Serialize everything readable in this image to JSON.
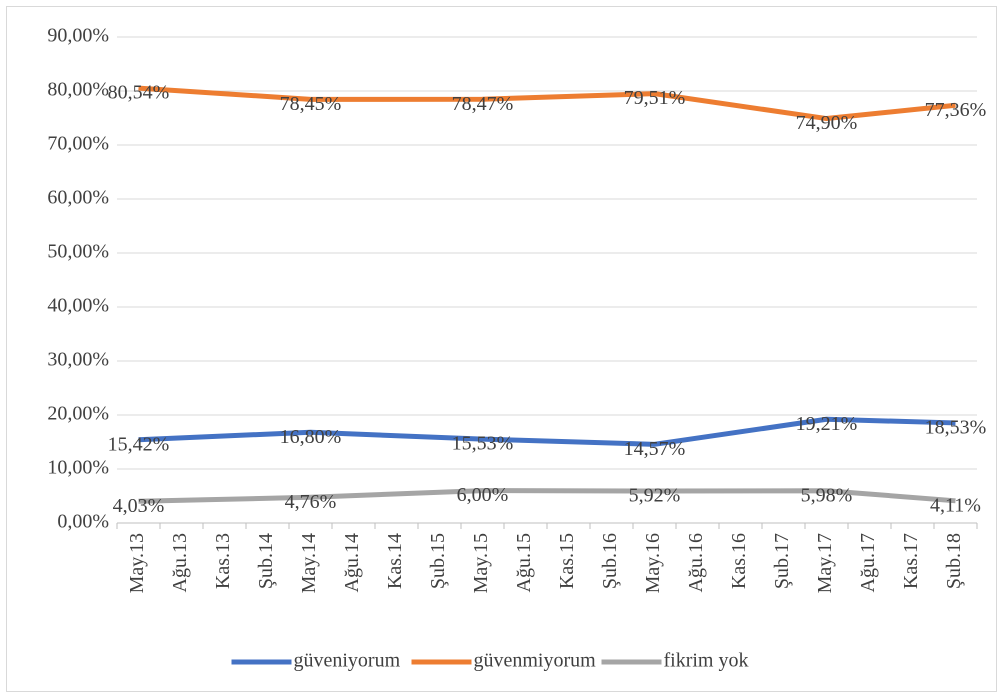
{
  "chart_data": {
    "type": "line",
    "categories": [
      "May.13",
      "Ağu.13",
      "Kas.13",
      "Şub.14",
      "May.14",
      "Ağu.14",
      "Kas.14",
      "Şub.15",
      "May.15",
      "Ağu.15",
      "Kas.15",
      "Şub.16",
      "May.16",
      "Ağu.16",
      "Kas.16",
      "Şub.17",
      "May.17",
      "Ağu.17",
      "Kas.17",
      "Şub.18"
    ],
    "x": [
      "May.13",
      "May.14",
      "May.15",
      "May.16",
      "May.17",
      "Şub.18"
    ],
    "series": [
      {
        "name": "güveniyorum",
        "color": "#4472c4",
        "values": [
          15.42,
          16.8,
          15.53,
          14.57,
          19.21,
          18.53
        ],
        "value_labels": [
          "15,42%",
          "16,80%",
          "15,53%",
          "14,57%",
          "19,21%",
          "18,53%"
        ]
      },
      {
        "name": "güvenmiyorum",
        "color": "#ed7d31",
        "values": [
          80.54,
          78.45,
          78.47,
          79.51,
          74.9,
          77.36
        ],
        "value_labels": [
          "80,54%",
          "78,45%",
          "78,47%",
          "79,51%",
          "74,90%",
          "77,36%"
        ]
      },
      {
        "name": "fikrim yok",
        "color": "#a5a5a5",
        "values": [
          4.03,
          4.76,
          6.0,
          5.92,
          5.98,
          4.11
        ],
        "value_labels": [
          "4,03%",
          "4,76%",
          "6,00%",
          "5,92%",
          "5,98%",
          "4,11%"
        ]
      }
    ],
    "ylim": [
      0,
      90
    ],
    "yticks": [
      {
        "value": 0,
        "label": "0,00%"
      },
      {
        "value": 10,
        "label": "10,00%"
      },
      {
        "value": 20,
        "label": "20,00%"
      },
      {
        "value": 30,
        "label": "30,00%"
      },
      {
        "value": 40,
        "label": "40,00%"
      },
      {
        "value": 50,
        "label": "50,00%"
      },
      {
        "value": 60,
        "label": "60,00%"
      },
      {
        "value": 70,
        "label": "70,00%"
      },
      {
        "value": 80,
        "label": "80,00%"
      },
      {
        "value": 90,
        "label": "90,00%"
      }
    ],
    "grid": true,
    "legend": "bottom"
  }
}
